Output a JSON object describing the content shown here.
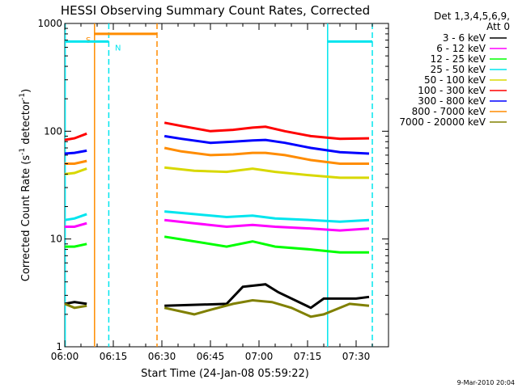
{
  "chart_data": {
    "type": "line",
    "title": "HESSI Observing Summary Count Rates, Corrected",
    "xlabel": "Start Time (24-Jan-08 05:59:22)",
    "ylabel_main": "Corrected Count Rate (s",
    "ylabel_exp1": "-1",
    "ylabel_mid": " detector",
    "ylabel_exp2": "-1",
    "ylabel_end": ")",
    "y_scale": "log",
    "ylim": [
      1,
      1000
    ],
    "xlim_min": [
      0,
      100
    ],
    "x_ticks": [
      {
        "min": 0,
        "label": "06:00"
      },
      {
        "min": 15,
        "label": "06:15"
      },
      {
        "min": 30,
        "label": "06:30"
      },
      {
        "min": 45,
        "label": "06:45"
      },
      {
        "min": 60,
        "label": "07:00"
      },
      {
        "min": 75,
        "label": "07:15"
      },
      {
        "min": 90,
        "label": "07:30"
      }
    ],
    "y_ticks": [
      {
        "value": 1,
        "label": "1"
      },
      {
        "value": 10,
        "label": "10"
      },
      {
        "value": 100,
        "label": "100"
      },
      {
        "value": 1000,
        "label": "1000"
      }
    ],
    "legend_header": [
      "Det 1,3,4,5,6,9,",
      "Att 0"
    ],
    "legend_placement": "right",
    "timestamp": "9-Mar-2010 20:04",
    "series": [
      {
        "name": "3 - 6 keV",
        "color": "#000000",
        "segments": [
          {
            "x": [
              0,
              3,
              6.8
            ],
            "y": [
              2.5,
              2.6,
              2.5
            ]
          },
          {
            "x": [
              30.8,
              50,
              55,
              62,
              66,
              76,
              80,
              90,
              94
            ],
            "y": [
              2.4,
              2.5,
              3.6,
              3.8,
              3.2,
              2.3,
              2.8,
              2.8,
              2.9
            ]
          }
        ]
      },
      {
        "name": "6 - 12 keV",
        "color": "#ff00ff",
        "segments": [
          {
            "x": [
              0,
              3,
              6.8
            ],
            "y": [
              13,
              13,
              14
            ]
          },
          {
            "x": [
              30.8,
              40,
              50,
              58,
              65,
              76,
              85,
              94
            ],
            "y": [
              15,
              14,
              13,
              13.5,
              13,
              12.5,
              12,
              12.5
            ]
          }
        ]
      },
      {
        "name": "12 - 25 keV",
        "color": "#00ff00",
        "segments": [
          {
            "x": [
              0,
              3,
              6.8
            ],
            "y": [
              8.5,
              8.5,
              9
            ]
          },
          {
            "x": [
              30.8,
              40,
              50,
              58,
              65,
              76,
              85,
              94
            ],
            "y": [
              10.5,
              9.5,
              8.5,
              9.5,
              8.5,
              8,
              7.5,
              7.5
            ]
          }
        ]
      },
      {
        "name": "25 - 50 keV",
        "color": "#00e5ee",
        "segments": [
          {
            "x": [
              0,
              3,
              6.8
            ],
            "y": [
              15,
              15.5,
              17
            ]
          },
          {
            "x": [
              30.8,
              40,
              50,
              58,
              65,
              76,
              85,
              94
            ],
            "y": [
              18,
              17,
              16,
              16.5,
              15.5,
              15,
              14.5,
              15
            ]
          }
        ]
      },
      {
        "name": "50 - 100 keV",
        "color": "#d8d800",
        "segments": [
          {
            "x": [
              0,
              3,
              6.8
            ],
            "y": [
              40,
              41,
              45
            ]
          },
          {
            "x": [
              30.8,
              40,
              50,
              58,
              65,
              76,
              85,
              94
            ],
            "y": [
              46,
              43,
              42,
              45,
              42,
              39,
              37,
              37
            ]
          }
        ]
      },
      {
        "name": "100 - 300 keV",
        "color": "#ff0000",
        "segments": [
          {
            "x": [
              0,
              3,
              6.8
            ],
            "y": [
              83,
              86,
              95
            ]
          },
          {
            "x": [
              30.8,
              36,
              45,
              52,
              58,
              62,
              68,
              76,
              85,
              94
            ],
            "y": [
              120,
              112,
              100,
              103,
              108,
              110,
              100,
              90,
              85,
              86
            ]
          }
        ]
      },
      {
        "name": "300 - 800 keV",
        "color": "#0000ff",
        "segments": [
          {
            "x": [
              0,
              3,
              6.8
            ],
            "y": [
              62,
              63,
              66
            ]
          },
          {
            "x": [
              30.8,
              36,
              45,
              52,
              58,
              62,
              68,
              76,
              85,
              94
            ],
            "y": [
              90,
              85,
              78,
              80,
              82,
              83,
              78,
              70,
              64,
              62
            ]
          }
        ]
      },
      {
        "name": "800 - 7000 keV",
        "color": "#ff8c00",
        "segments": [
          {
            "x": [
              0,
              3,
              6.8
            ],
            "y": [
              50,
              50,
              53
            ]
          },
          {
            "x": [
              30.8,
              36,
              45,
              52,
              58,
              62,
              68,
              76,
              85,
              94
            ],
            "y": [
              70,
              65,
              60,
              61,
              63,
              63,
              60,
              54,
              50,
              50
            ]
          }
        ]
      },
      {
        "name": "7000 - 20000 keV",
        "color": "#808000",
        "segments": [
          {
            "x": [
              0,
              3,
              6.8
            ],
            "y": [
              2.5,
              2.3,
              2.4
            ]
          },
          {
            "x": [
              30.8,
              40,
              45,
              52,
              58,
              64,
              70,
              76,
              80,
              88,
              94
            ],
            "y": [
              2.3,
              2.0,
              2.2,
              2.5,
              2.7,
              2.6,
              2.3,
              1.9,
              2.0,
              2.5,
              2.4
            ]
          }
        ]
      }
    ],
    "markers": [
      {
        "name": "attenuator-bar",
        "label": "S",
        "color": "#ff8c00",
        "x_start": 9.2,
        "x_end": 28.5,
        "level": 800,
        "label_x": 6.5
      },
      {
        "name": "night-bar-1",
        "label": "N",
        "color": "#00e5ee",
        "x_start": 0,
        "x_end": 13.6,
        "level": 680,
        "label_x": 15.5
      },
      {
        "name": "night-bar-2",
        "label": "",
        "color": "#00e5ee",
        "x_start": 81.2,
        "x_end": 95,
        "level": 680,
        "label_x": 0
      }
    ],
    "vlines": [
      {
        "x": 0.15,
        "color": "#00e5ee",
        "dashed": false
      },
      {
        "x": 9.2,
        "color": "#ff8c00",
        "dashed": false
      },
      {
        "x": 13.6,
        "color": "#00e5ee",
        "dashed": true
      },
      {
        "x": 28.5,
        "color": "#ff8c00",
        "dashed": true
      },
      {
        "x": 81.2,
        "color": "#00e5ee",
        "dashed": false
      },
      {
        "x": 95,
        "color": "#00e5ee",
        "dashed": true
      }
    ]
  }
}
